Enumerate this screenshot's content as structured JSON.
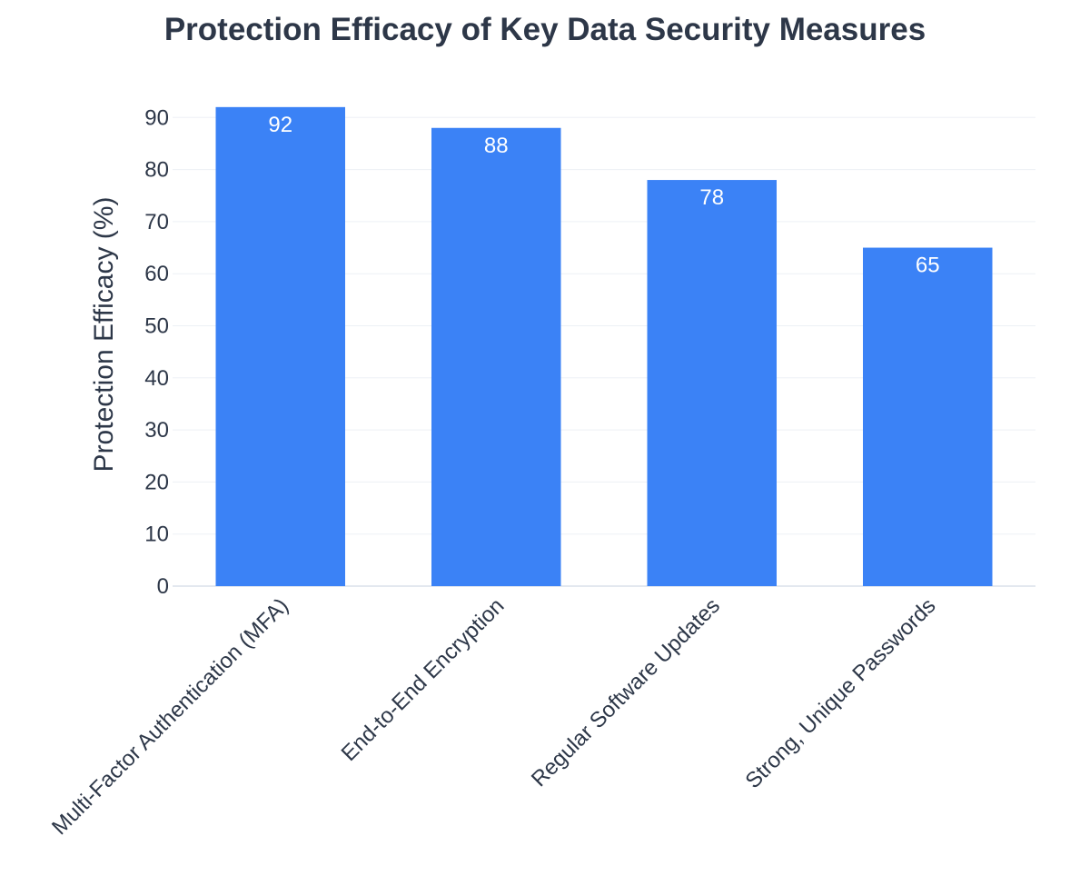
{
  "chart_data": {
    "type": "bar",
    "title": "Protection Efficacy of Key Data Security Measures",
    "xlabel": "",
    "ylabel": "Protection Efficacy (%)",
    "categories": [
      "Multi-Factor Authentication (MFA)",
      "End-to-End Encryption",
      "Regular Software Updates",
      "Strong, Unique Passwords"
    ],
    "values": [
      92,
      88,
      78,
      65
    ],
    "data_labels": [
      "92",
      "88",
      "78",
      "65"
    ],
    "y_ticks": [
      0,
      10,
      20,
      30,
      40,
      50,
      60,
      70,
      80,
      90
    ],
    "ylim": [
      0,
      96
    ],
    "grid": true,
    "legend": "none",
    "colors": {
      "bar": "#3b82f6",
      "title": "#2d3748",
      "label": "#ffffff"
    }
  }
}
